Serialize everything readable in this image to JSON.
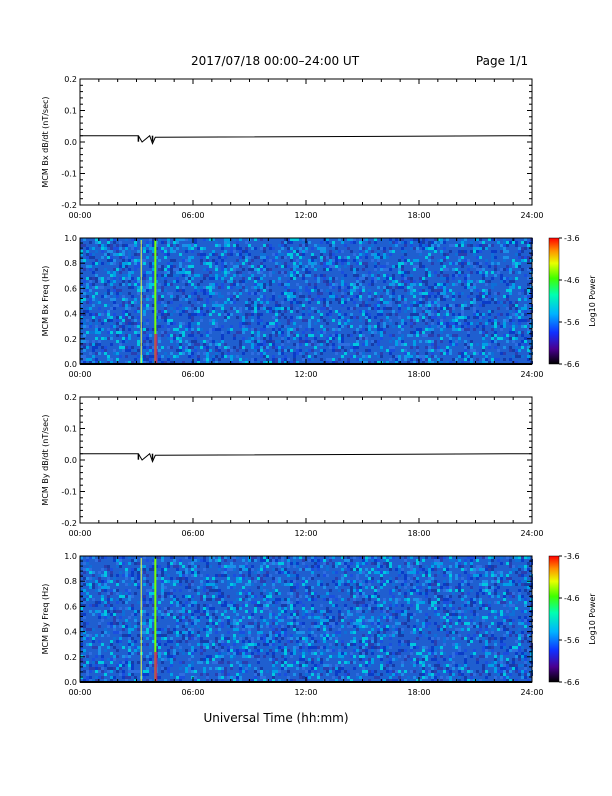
{
  "header": {
    "title": "2017/07/18  00:00–24:00 UT",
    "page_label": "Page 1/1"
  },
  "footer": {
    "xaxis_label": "Universal Time (hh:mm)"
  },
  "colors": {
    "axis": "#000000",
    "spectrogram_background": "#1f5fd0",
    "event_line_green": "#7cff00",
    "event_line_yellow": "#f0ff40"
  },
  "chart_data": [
    {
      "type": "line",
      "id": "bx_line",
      "ylabel": "MCM Bx dB/dt (nT/sec)",
      "ylim": [
        -0.2,
        0.2
      ],
      "yticks": [
        "0.2",
        "0.1",
        "0.0",
        "-0.1",
        "-0.2"
      ],
      "xlim": [
        0,
        24
      ],
      "xticks": [
        "00:00",
        "06:00",
        "12:00",
        "18:00",
        "24:00"
      ],
      "series": [
        {
          "x": [
            0,
            3.1,
            3.3,
            3.7,
            3.85,
            4.0,
            24
          ],
          "y": [
            0.02,
            0.02,
            0.0,
            0.02,
            -0.005,
            0.015,
            0.02
          ]
        }
      ]
    },
    {
      "type": "heatmap",
      "id": "bx_spec",
      "ylabel": "MCM Bx Freq (Hz)",
      "ylim": [
        0.0,
        1.0
      ],
      "yticks": [
        "1.0",
        "0.8",
        "0.6",
        "0.4",
        "0.2",
        "0.0"
      ],
      "xlim": [
        0,
        24
      ],
      "xticks": [
        "00:00",
        "06:00",
        "12:00",
        "18:00",
        "24:00"
      ],
      "colorbar": {
        "label": "Log10 Power",
        "range": [
          -6.6,
          -3.6
        ],
        "ticks": [
          "-3.6",
          "-4.6",
          "-5.6",
          "-6.6"
        ]
      },
      "events": [
        {
          "x": 3.25,
          "label": ""
        },
        {
          "x": 4.0,
          "label": ""
        }
      ]
    },
    {
      "type": "line",
      "id": "by_line",
      "ylabel": "MCM By dB/dt (nT/sec)",
      "ylim": [
        -0.2,
        0.2
      ],
      "yticks": [
        "0.2",
        "0.1",
        "0.0",
        "-0.1",
        "-0.2"
      ],
      "xlim": [
        0,
        24
      ],
      "xticks": [
        "00:00",
        "06:00",
        "12:00",
        "18:00",
        "24:00"
      ],
      "series": [
        {
          "x": [
            0,
            3.1,
            3.3,
            3.7,
            3.85,
            4.0,
            24
          ],
          "y": [
            0.02,
            0.02,
            0.0,
            0.02,
            -0.005,
            0.015,
            0.02
          ]
        }
      ]
    },
    {
      "type": "heatmap",
      "id": "by_spec",
      "ylabel": "MCM By Freq (Hz)",
      "ylim": [
        0.0,
        1.0
      ],
      "yticks": [
        "1.0",
        "0.8",
        "0.6",
        "0.4",
        "0.2",
        "0.0"
      ],
      "xlim": [
        0,
        24
      ],
      "xticks": [
        "00:00",
        "06:00",
        "12:00",
        "18:00",
        "24:00"
      ],
      "colorbar": {
        "label": "Log10 Power",
        "range": [
          -6.6,
          -3.6
        ],
        "ticks": [
          "-3.6",
          "-4.6",
          "-5.6",
          "-6.6"
        ]
      },
      "events": [
        {
          "x": 3.25,
          "label": ""
        },
        {
          "x": 4.0,
          "label": ""
        }
      ]
    }
  ]
}
